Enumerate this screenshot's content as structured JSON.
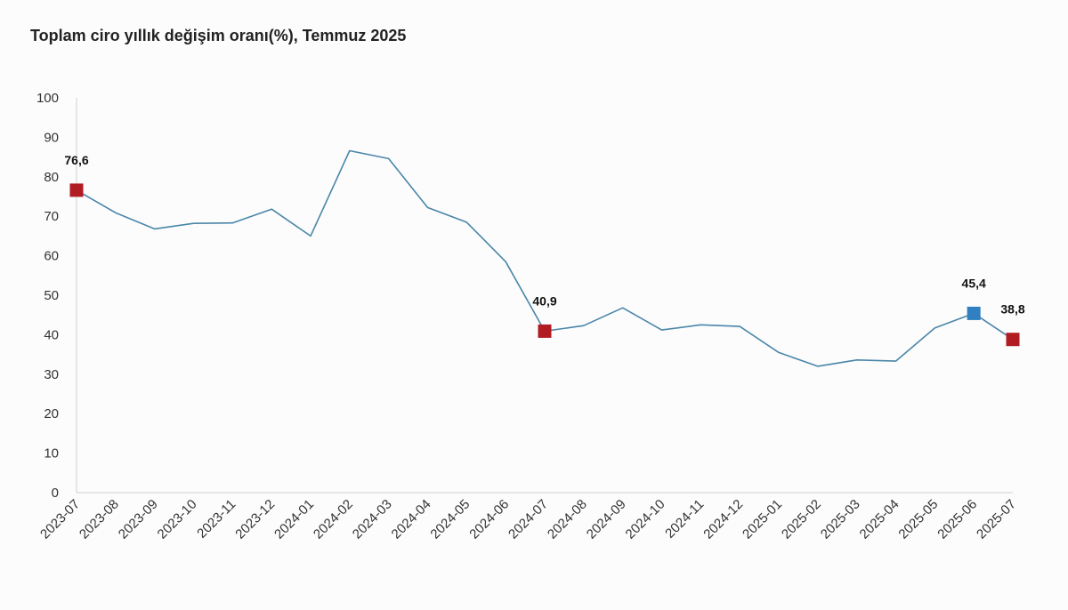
{
  "title": "Toplam ciro yıllık değişim oranı(%), Temmuz 2025",
  "colors": {
    "line": "#4a86a8",
    "marker_red": "#b01c22",
    "marker_blue": "#2f7fc1",
    "axis": "#cfcfcf"
  },
  "chart_data": {
    "type": "line",
    "title": "Toplam ciro yıllık değişim oranı(%), Temmuz 2025",
    "xlabel": "",
    "ylabel": "",
    "ylim": [
      0,
      100
    ],
    "yticks": [
      0,
      10,
      20,
      30,
      40,
      50,
      60,
      70,
      80,
      90,
      100
    ],
    "grid": false,
    "categories": [
      "2023-07",
      "2023-08",
      "2023-09",
      "2023-10",
      "2023-11",
      "2023-12",
      "2024-01",
      "2024-02",
      "2024-03",
      "2024-04",
      "2024-05",
      "2024-06",
      "2024-07",
      "2024-08",
      "2024-09",
      "2024-10",
      "2024-11",
      "2024-12",
      "2025-01",
      "2025-02",
      "2025-03",
      "2025-04",
      "2025-05",
      "2025-06",
      "2025-07"
    ],
    "series": [
      {
        "values": [
          76.6,
          70.9,
          66.8,
          68.2,
          68.3,
          71.8,
          65.0,
          86.6,
          84.6,
          72.2,
          68.5,
          58.5,
          40.9,
          42.3,
          46.8,
          41.2,
          42.5,
          42.1,
          35.5,
          32.0,
          33.6,
          33.3,
          41.7,
          45.4,
          38.8
        ]
      }
    ],
    "highlights": [
      {
        "category": "2023-07",
        "value": 76.6,
        "label": "76,6",
        "color": "red"
      },
      {
        "category": "2024-07",
        "value": 40.9,
        "label": "40,9",
        "color": "red"
      },
      {
        "category": "2025-06",
        "value": 45.4,
        "label": "45,4",
        "color": "blue"
      },
      {
        "category": "2025-07",
        "value": 38.8,
        "label": "38,8",
        "color": "red"
      }
    ]
  }
}
